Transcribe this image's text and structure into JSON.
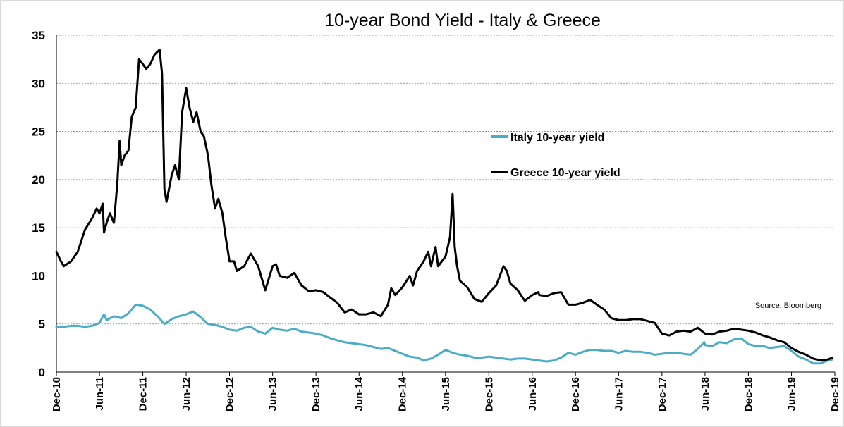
{
  "chart_data": {
    "type": "line",
    "title": "10-year Bond Yield - Italy & Greece",
    "xlabel": "",
    "ylabel": "",
    "ylim": [
      0,
      35
    ],
    "yticks": [
      "0",
      "5",
      "10",
      "15",
      "20",
      "25",
      "30",
      "35"
    ],
    "x_ticks": [
      "Dec-10",
      "Jun-11",
      "Dec-11",
      "Jun-12",
      "Dec-12",
      "Jun-13",
      "Dec-13",
      "Jun-14",
      "Dec-14",
      "Jun-15",
      "Dec-15",
      "Jun-16",
      "Dec-16",
      "Jun-17",
      "Dec-17",
      "Jun-18",
      "Dec-18",
      "Jun-19",
      "Dec-19"
    ],
    "grid": "horizontal dotted",
    "legend_position": "center-right",
    "source": "Source: Bloomberg",
    "series": [
      {
        "name": "Italy 10-year yield",
        "color": "#4bacc6",
        "points": [
          [
            "2010-12-01",
            4.7
          ],
          [
            "2011-01-01",
            4.7
          ],
          [
            "2011-02-01",
            4.8
          ],
          [
            "2011-03-01",
            4.8
          ],
          [
            "2011-04-01",
            4.7
          ],
          [
            "2011-05-01",
            4.8
          ],
          [
            "2011-06-01",
            5.1
          ],
          [
            "2011-06-20",
            6.0
          ],
          [
            "2011-07-01",
            5.4
          ],
          [
            "2011-08-01",
            5.8
          ],
          [
            "2011-09-01",
            5.6
          ],
          [
            "2011-10-01",
            6.1
          ],
          [
            "2011-11-01",
            7.0
          ],
          [
            "2011-12-01",
            6.9
          ],
          [
            "2012-01-01",
            6.5
          ],
          [
            "2012-02-01",
            5.8
          ],
          [
            "2012-03-01",
            5.0
          ],
          [
            "2012-04-01",
            5.5
          ],
          [
            "2012-05-01",
            5.8
          ],
          [
            "2012-06-01",
            6.0
          ],
          [
            "2012-07-01",
            6.3
          ],
          [
            "2012-08-01",
            5.7
          ],
          [
            "2012-09-01",
            5.0
          ],
          [
            "2012-10-01",
            4.9
          ],
          [
            "2012-11-01",
            4.7
          ],
          [
            "2012-12-01",
            4.4
          ],
          [
            "2013-01-01",
            4.3
          ],
          [
            "2013-02-01",
            4.6
          ],
          [
            "2013-03-01",
            4.7
          ],
          [
            "2013-04-01",
            4.2
          ],
          [
            "2013-05-01",
            4.0
          ],
          [
            "2013-06-01",
            4.6
          ],
          [
            "2013-07-01",
            4.4
          ],
          [
            "2013-08-01",
            4.3
          ],
          [
            "2013-09-01",
            4.5
          ],
          [
            "2013-10-01",
            4.2
          ],
          [
            "2013-11-01",
            4.1
          ],
          [
            "2013-12-01",
            4.0
          ],
          [
            "2014-01-01",
            3.8
          ],
          [
            "2014-02-01",
            3.5
          ],
          [
            "2014-03-01",
            3.3
          ],
          [
            "2014-04-01",
            3.1
          ],
          [
            "2014-05-01",
            3.0
          ],
          [
            "2014-06-01",
            2.9
          ],
          [
            "2014-07-01",
            2.8
          ],
          [
            "2014-08-01",
            2.6
          ],
          [
            "2014-09-01",
            2.4
          ],
          [
            "2014-10-01",
            2.5
          ],
          [
            "2014-11-01",
            2.2
          ],
          [
            "2014-12-01",
            1.9
          ],
          [
            "2015-01-01",
            1.6
          ],
          [
            "2015-02-01",
            1.5
          ],
          [
            "2015-03-01",
            1.2
          ],
          [
            "2015-04-01",
            1.4
          ],
          [
            "2015-05-01",
            1.8
          ],
          [
            "2015-06-01",
            2.3
          ],
          [
            "2015-07-01",
            2.0
          ],
          [
            "2015-08-01",
            1.8
          ],
          [
            "2015-09-01",
            1.7
          ],
          [
            "2015-10-01",
            1.5
          ],
          [
            "2015-11-01",
            1.5
          ],
          [
            "2015-12-01",
            1.6
          ],
          [
            "2016-01-01",
            1.5
          ],
          [
            "2016-02-01",
            1.4
          ],
          [
            "2016-03-01",
            1.3
          ],
          [
            "2016-04-01",
            1.4
          ],
          [
            "2016-05-01",
            1.4
          ],
          [
            "2016-06-01",
            1.3
          ],
          [
            "2016-07-01",
            1.2
          ],
          [
            "2016-08-01",
            1.1
          ],
          [
            "2016-09-01",
            1.2
          ],
          [
            "2016-10-01",
            1.5
          ],
          [
            "2016-11-01",
            2.0
          ],
          [
            "2016-12-01",
            1.8
          ],
          [
            "2017-01-01",
            2.1
          ],
          [
            "2017-02-01",
            2.3
          ],
          [
            "2017-03-01",
            2.3
          ],
          [
            "2017-04-01",
            2.2
          ],
          [
            "2017-05-01",
            2.2
          ],
          [
            "2017-06-01",
            2.0
          ],
          [
            "2017-07-01",
            2.2
          ],
          [
            "2017-08-01",
            2.1
          ],
          [
            "2017-09-01",
            2.1
          ],
          [
            "2017-10-01",
            2.0
          ],
          [
            "2017-11-01",
            1.8
          ],
          [
            "2017-12-01",
            1.9
          ],
          [
            "2018-01-01",
            2.0
          ],
          [
            "2018-02-01",
            2.0
          ],
          [
            "2018-03-01",
            1.9
          ],
          [
            "2018-04-01",
            1.8
          ],
          [
            "2018-05-01",
            2.4
          ],
          [
            "2018-05-29",
            3.1
          ],
          [
            "2018-06-01",
            2.8
          ],
          [
            "2018-07-01",
            2.7
          ],
          [
            "2018-08-01",
            3.1
          ],
          [
            "2018-09-01",
            3.0
          ],
          [
            "2018-10-01",
            3.4
          ],
          [
            "2018-11-01",
            3.5
          ],
          [
            "2018-12-01",
            2.9
          ],
          [
            "2019-01-01",
            2.7
          ],
          [
            "2019-02-01",
            2.7
          ],
          [
            "2019-03-01",
            2.5
          ],
          [
            "2019-04-01",
            2.6
          ],
          [
            "2019-05-01",
            2.7
          ],
          [
            "2019-06-01",
            2.2
          ],
          [
            "2019-07-01",
            1.6
          ],
          [
            "2019-08-01",
            1.3
          ],
          [
            "2019-09-01",
            0.9
          ],
          [
            "2019-10-01",
            0.9
          ],
          [
            "2019-11-01",
            1.2
          ],
          [
            "2019-11-20",
            1.3
          ]
        ]
      },
      {
        "name": "Greece 10-year yield",
        "color": "#000000",
        "points": [
          [
            "2010-12-01",
            12.5
          ],
          [
            "2010-12-20",
            11.5
          ],
          [
            "2011-01-01",
            11.0
          ],
          [
            "2011-02-01",
            11.5
          ],
          [
            "2011-03-01",
            12.5
          ],
          [
            "2011-04-01",
            14.8
          ],
          [
            "2011-05-01",
            16.0
          ],
          [
            "2011-05-20",
            17.0
          ],
          [
            "2011-06-01",
            16.5
          ],
          [
            "2011-06-15",
            17.5
          ],
          [
            "2011-06-20",
            14.5
          ],
          [
            "2011-07-01",
            15.5
          ],
          [
            "2011-07-15",
            16.5
          ],
          [
            "2011-08-01",
            15.5
          ],
          [
            "2011-08-15",
            19.5
          ],
          [
            "2011-08-25",
            24.0
          ],
          [
            "2011-09-01",
            21.5
          ],
          [
            "2011-09-15",
            22.5
          ],
          [
            "2011-10-01",
            23.0
          ],
          [
            "2011-10-15",
            26.5
          ],
          [
            "2011-11-01",
            27.5
          ],
          [
            "2011-11-15",
            32.5
          ],
          [
            "2011-12-01",
            32.0
          ],
          [
            "2011-12-15",
            31.5
          ],
          [
            "2012-01-01",
            32.0
          ],
          [
            "2012-01-20",
            33.0
          ],
          [
            "2012-02-10",
            33.5
          ],
          [
            "2012-02-20",
            31.0
          ],
          [
            "2012-03-01",
            19.0
          ],
          [
            "2012-03-10",
            17.7
          ],
          [
            "2012-04-01",
            20.5
          ],
          [
            "2012-04-15",
            21.5
          ],
          [
            "2012-05-01",
            20.0
          ],
          [
            "2012-05-15",
            27.0
          ],
          [
            "2012-06-01",
            29.5
          ],
          [
            "2012-06-15",
            27.5
          ],
          [
            "2012-07-01",
            26.0
          ],
          [
            "2012-07-15",
            27.0
          ],
          [
            "2012-08-01",
            25.0
          ],
          [
            "2012-08-15",
            24.5
          ],
          [
            "2012-09-01",
            22.5
          ],
          [
            "2012-09-15",
            19.5
          ],
          [
            "2012-10-01",
            17.0
          ],
          [
            "2012-10-15",
            18.0
          ],
          [
            "2012-11-01",
            16.5
          ],
          [
            "2012-11-15",
            14.0
          ],
          [
            "2012-12-01",
            11.5
          ],
          [
            "2012-12-20",
            11.5
          ],
          [
            "2013-01-01",
            10.5
          ],
          [
            "2013-02-01",
            11.0
          ],
          [
            "2013-03-01",
            12.3
          ],
          [
            "2013-04-01",
            11.0
          ],
          [
            "2013-05-01",
            8.5
          ],
          [
            "2013-06-01",
            11.0
          ],
          [
            "2013-06-15",
            11.2
          ],
          [
            "2013-07-01",
            10.0
          ],
          [
            "2013-08-01",
            9.8
          ],
          [
            "2013-09-01",
            10.3
          ],
          [
            "2013-10-01",
            9.0
          ],
          [
            "2013-11-01",
            8.4
          ],
          [
            "2013-12-01",
            8.5
          ],
          [
            "2014-01-01",
            8.3
          ],
          [
            "2014-02-01",
            7.7
          ],
          [
            "2014-03-01",
            7.2
          ],
          [
            "2014-04-01",
            6.2
          ],
          [
            "2014-05-01",
            6.5
          ],
          [
            "2014-06-01",
            6.0
          ],
          [
            "2014-07-01",
            6.0
          ],
          [
            "2014-08-01",
            6.2
          ],
          [
            "2014-09-01",
            5.8
          ],
          [
            "2014-10-01",
            7.0
          ],
          [
            "2014-10-15",
            8.7
          ],
          [
            "2014-11-01",
            8.0
          ],
          [
            "2014-12-01",
            8.8
          ],
          [
            "2015-01-01",
            10.0
          ],
          [
            "2015-01-15",
            9.0
          ],
          [
            "2015-02-01",
            10.5
          ],
          [
            "2015-03-01",
            11.5
          ],
          [
            "2015-03-20",
            12.5
          ],
          [
            "2015-04-01",
            11.0
          ],
          [
            "2015-04-20",
            13.0
          ],
          [
            "2015-05-01",
            11.0
          ],
          [
            "2015-06-01",
            12.0
          ],
          [
            "2015-06-20",
            14.0
          ],
          [
            "2015-07-01",
            18.5
          ],
          [
            "2015-07-10",
            13.0
          ],
          [
            "2015-07-20",
            11.0
          ],
          [
            "2015-08-01",
            9.5
          ],
          [
            "2015-09-01",
            8.8
          ],
          [
            "2015-10-01",
            7.6
          ],
          [
            "2015-11-01",
            7.3
          ],
          [
            "2015-12-01",
            8.2
          ],
          [
            "2016-01-01",
            9.0
          ],
          [
            "2016-02-01",
            11.0
          ],
          [
            "2016-02-15",
            10.5
          ],
          [
            "2016-03-01",
            9.2
          ],
          [
            "2016-04-01",
            8.5
          ],
          [
            "2016-05-01",
            7.4
          ],
          [
            "2016-06-01",
            8.0
          ],
          [
            "2016-06-27",
            8.3
          ],
          [
            "2016-07-01",
            8.0
          ],
          [
            "2016-08-01",
            7.9
          ],
          [
            "2016-09-01",
            8.2
          ],
          [
            "2016-10-01",
            8.3
          ],
          [
            "2016-11-01",
            7.0
          ],
          [
            "2016-12-01",
            7.0
          ],
          [
            "2017-01-01",
            7.2
          ],
          [
            "2017-02-01",
            7.5
          ],
          [
            "2017-03-01",
            7.0
          ],
          [
            "2017-04-01",
            6.5
          ],
          [
            "2017-05-01",
            5.6
          ],
          [
            "2017-06-01",
            5.4
          ],
          [
            "2017-07-01",
            5.4
          ],
          [
            "2017-08-01",
            5.5
          ],
          [
            "2017-09-01",
            5.5
          ],
          [
            "2017-10-01",
            5.3
          ],
          [
            "2017-11-01",
            5.1
          ],
          [
            "2017-12-01",
            4.0
          ],
          [
            "2018-01-01",
            3.8
          ],
          [
            "2018-02-01",
            4.2
          ],
          [
            "2018-03-01",
            4.3
          ],
          [
            "2018-04-01",
            4.2
          ],
          [
            "2018-05-01",
            4.6
          ],
          [
            "2018-06-01",
            4.0
          ],
          [
            "2018-07-01",
            3.9
          ],
          [
            "2018-08-01",
            4.2
          ],
          [
            "2018-09-01",
            4.3
          ],
          [
            "2018-10-01",
            4.5
          ],
          [
            "2018-11-01",
            4.4
          ],
          [
            "2018-12-01",
            4.3
          ],
          [
            "2019-01-01",
            4.1
          ],
          [
            "2019-02-01",
            3.8
          ],
          [
            "2019-03-01",
            3.6
          ],
          [
            "2019-04-01",
            3.3
          ],
          [
            "2019-05-01",
            3.1
          ],
          [
            "2019-06-01",
            2.5
          ],
          [
            "2019-07-01",
            2.1
          ],
          [
            "2019-08-01",
            1.8
          ],
          [
            "2019-09-01",
            1.4
          ],
          [
            "2019-10-01",
            1.2
          ],
          [
            "2019-11-01",
            1.3
          ],
          [
            "2019-11-20",
            1.5
          ]
        ]
      }
    ]
  }
}
